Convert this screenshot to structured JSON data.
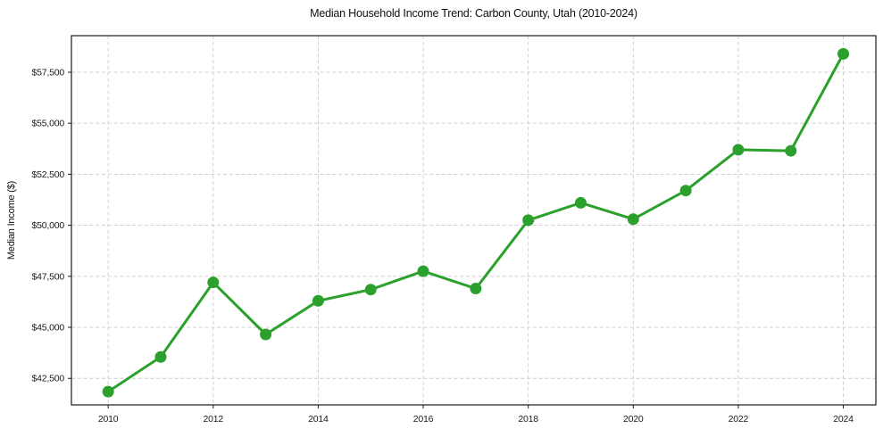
{
  "chart_data": {
    "type": "line",
    "title": "Median Household Income Trend: Carbon County, Utah (2010-2024)",
    "xlabel": "",
    "ylabel": "Median Income ($)",
    "x": [
      2010,
      2011,
      2012,
      2013,
      2014,
      2015,
      2016,
      2017,
      2018,
      2019,
      2020,
      2021,
      2022,
      2023,
      2024
    ],
    "values": [
      41850,
      43550,
      47200,
      44650,
      46300,
      46850,
      47750,
      46900,
      50250,
      51100,
      50300,
      51700,
      53700,
      53650,
      58400
    ],
    "x_ticks": [
      2010,
      2012,
      2014,
      2016,
      2018,
      2020,
      2022,
      2024
    ],
    "x_tick_labels": [
      "2010",
      "2012",
      "2014",
      "2016",
      "2018",
      "2020",
      "2022",
      "2024"
    ],
    "y_ticks": [
      42500,
      45000,
      47500,
      50000,
      52500,
      55000,
      57500
    ],
    "y_tick_labels": [
      "$42,500",
      "$45,000",
      "$47,500",
      "$50,000",
      "$52,500",
      "$55,000",
      "$57,500"
    ],
    "xlim": [
      2009.3,
      2024.62
    ],
    "ylim": [
      41200,
      59290
    ],
    "grid": true,
    "grid_style": "dashed",
    "legend_position": "none",
    "line_color": "#2ca02c",
    "marker_color": "#2ca02c",
    "grid_color": "#cccccc",
    "spine_color": "#1a1a1a",
    "background_color": "#ffffff"
  }
}
